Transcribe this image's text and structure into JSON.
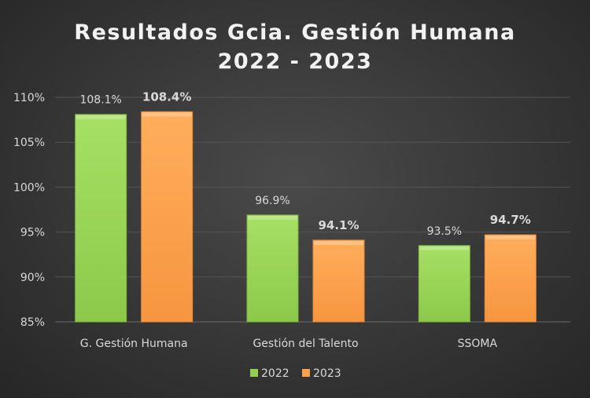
{
  "chart_data": {
    "type": "bar",
    "title": "Resultados Gcia. Gestión Humana",
    "subtitle": "2022 - 2023",
    "categories": [
      "G. Gestión Humana",
      "Gestión del Talento",
      "SSOMA"
    ],
    "series": [
      {
        "name": "2022",
        "values": [
          108.1,
          96.9,
          93.5
        ],
        "labels": [
          "108.1%",
          "96.9%",
          "93.5%"
        ],
        "color": "#92d050",
        "label_bold": false
      },
      {
        "name": "2023",
        "values": [
          108.4,
          94.1,
          94.7
        ],
        "labels": [
          "108.4%",
          "94.1%",
          "94.7%"
        ],
        "color": "#ff9f4a",
        "label_bold": true
      }
    ],
    "yticks": [
      "85%",
      "90%",
      "95%",
      "100%",
      "105%",
      "110%"
    ],
    "ytick_values": [
      85,
      90,
      95,
      100,
      105,
      110
    ],
    "ylim": [
      85,
      110
    ],
    "xlabel": "",
    "ylabel": "",
    "grid": true,
    "legend": "bottom",
    "background": "#333333"
  }
}
